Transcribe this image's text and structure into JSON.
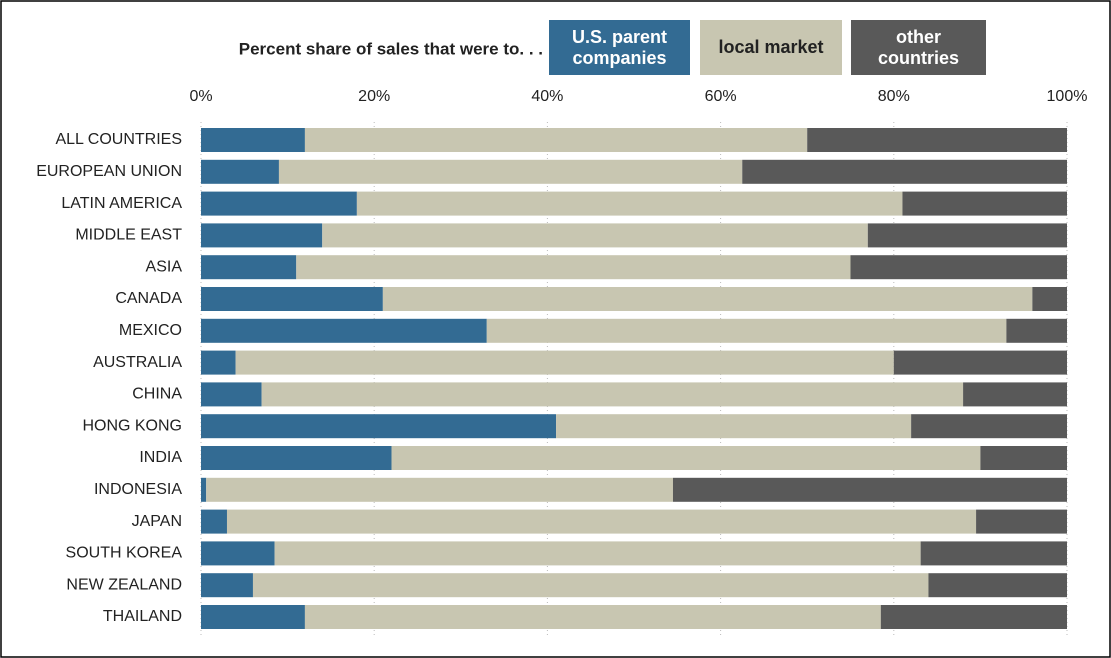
{
  "chart_data": {
    "type": "stacked_barh",
    "title": "Percent share of sales that were to. . .",
    "categories": [
      "ALL COUNTRIES",
      "EUROPEAN UNION",
      "LATIN AMERICA",
      "MIDDLE EAST",
      "ASIA",
      "CANADA",
      "MEXICO",
      "AUSTRALIA",
      "CHINA",
      "HONG KONG",
      "INDIA",
      "INDONESIA",
      "JAPAN",
      "SOUTH KOREA",
      "NEW ZEALAND",
      "THAILAND"
    ],
    "series": [
      {
        "name": "U.S. parent companies",
        "color": "#336b93",
        "values": [
          12,
          9,
          18,
          14,
          11,
          21,
          33,
          4,
          7,
          41,
          22,
          0.6,
          3,
          8.5,
          6,
          12
        ]
      },
      {
        "name": "local market",
        "color": "#c8c6b1",
        "values": [
          58,
          53.5,
          63,
          63,
          64,
          75,
          60,
          76,
          81,
          41,
          68,
          53.9,
          86.5,
          74.6,
          78,
          66.5
        ]
      },
      {
        "name": "other countries",
        "color": "#595959",
        "values": [
          30,
          37.5,
          19,
          23,
          25,
          4,
          7,
          20,
          12,
          18,
          10,
          45.5,
          10.5,
          16.9,
          16,
          21.5
        ]
      }
    ],
    "xlim": [
      0,
      100
    ],
    "xticks": [
      {
        "value": 0,
        "label": "0%"
      },
      {
        "value": 20,
        "label": "20%"
      },
      {
        "value": 40,
        "label": "40%"
      },
      {
        "value": 60,
        "label": "60%"
      },
      {
        "value": 80,
        "label": "80%"
      },
      {
        "value": 100,
        "label": "100%"
      }
    ],
    "grid": true
  }
}
